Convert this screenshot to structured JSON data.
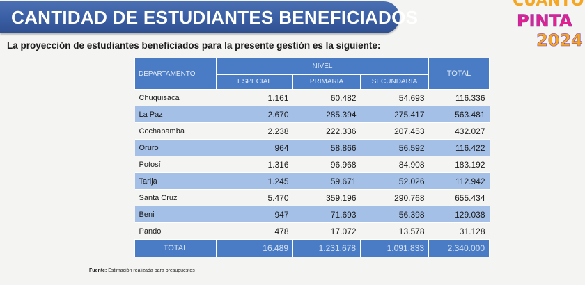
{
  "header": {
    "title": "CANTIDAD DE ESTUDIANTES BENEFICIADOS"
  },
  "logo": {
    "line1": "CUANTO",
    "line2": "PINTA",
    "line3": "2024",
    "colors": [
      "#f5a623",
      "#e91e8c",
      "#7b3fb5"
    ]
  },
  "intro": "La proyección de estudiantes beneficiados para la presente gestión es la siguiente:",
  "table": {
    "headers": {
      "departamento": "DEPARTAMENTO",
      "nivel": "NIVEL",
      "especial": "ESPECIAL",
      "primaria": "PRIMARIA",
      "secundaria": "SECUNDARIA",
      "total": "TOTAL"
    },
    "rows": [
      {
        "departamento": "Chuquisaca",
        "especial": "1.161",
        "primaria": "60.482",
        "secundaria": "54.693",
        "total": "116.336"
      },
      {
        "departamento": "La Paz",
        "especial": "2.670",
        "primaria": "285.394",
        "secundaria": "275.417",
        "total": "563.481"
      },
      {
        "departamento": "Cochabamba",
        "especial": "2.238",
        "primaria": "222.336",
        "secundaria": "207.453",
        "total": "432.027"
      },
      {
        "departamento": "Oruro",
        "especial": "964",
        "primaria": "58.866",
        "secundaria": "56.592",
        "total": "116.422"
      },
      {
        "departamento": "Potosí",
        "especial": "1.316",
        "primaria": "96.968",
        "secundaria": "84.908",
        "total": "183.192"
      },
      {
        "departamento": "Tarija",
        "especial": "1.245",
        "primaria": "59.671",
        "secundaria": "52.026",
        "total": "112.942"
      },
      {
        "departamento": "Santa Cruz",
        "especial": "5.470",
        "primaria": "359.196",
        "secundaria": "290.768",
        "total": "655.434"
      },
      {
        "departamento": "Beni",
        "especial": "947",
        "primaria": "71.693",
        "secundaria": "56.398",
        "total": "129.038"
      },
      {
        "departamento": "Pando",
        "especial": "478",
        "primaria": "17.072",
        "secundaria": "13.578",
        "total": "31.128"
      }
    ],
    "total_row": {
      "departamento": "TOTAL",
      "especial": "16.489",
      "primaria": "1.231.678",
      "secundaria": "1.091.833",
      "total": "2.340.000"
    }
  },
  "source": {
    "label": "Fuente:",
    "text": "Estimación realizada para presupuestos"
  }
}
